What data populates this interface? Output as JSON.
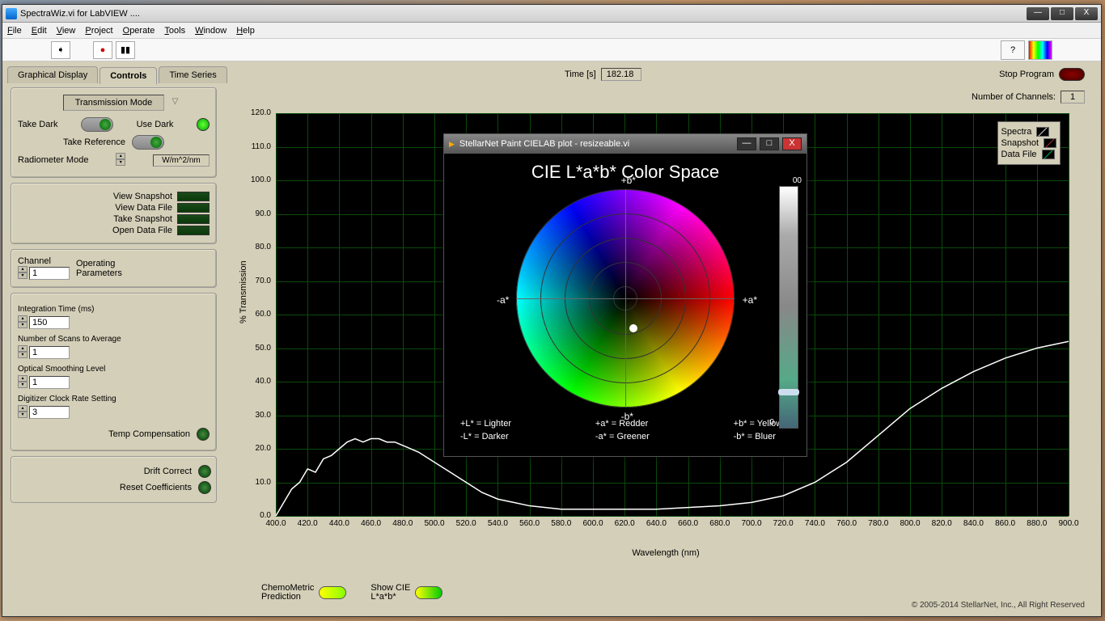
{
  "window": {
    "title": "SpectraWiz.vi for LabVIEW ....",
    "min": "—",
    "max": "□",
    "close": "X"
  },
  "menu": {
    "file": "File",
    "edit": "Edit",
    "view": "View",
    "project": "Project",
    "operate": "Operate",
    "tools": "Tools",
    "window": "Window",
    "help": "Help"
  },
  "tabs": {
    "graphical": "Graphical Display",
    "controls": "Controls",
    "timeseries": "Time Series"
  },
  "time": {
    "label": "Time [s]",
    "value": "182.18"
  },
  "stop": "Stop Program",
  "channels": {
    "label": "Number of Channels:",
    "value": "1"
  },
  "sidebar": {
    "mode": "Transmission Mode",
    "takeDark": "Take Dark",
    "useDark": "Use Dark",
    "takeRef": "Take Reference",
    "radiometer": "Radiometer Mode",
    "unit": "W/m^2/nm",
    "viewSnap": "View Snapshot",
    "viewData": "View Data File",
    "takeSnap": "Take Snapshot",
    "openData": "Open Data File",
    "channel": "Channel",
    "chanVal": "1",
    "opParams": "Operating Parameters",
    "intTime": "Integration Time (ms)",
    "intTimeVal": "150",
    "scans": "Number of Scans to Average",
    "scansVal": "1",
    "smooth": "Optical Smoothing Level",
    "smoothVal": "1",
    "clock": "Digitizer Clock Rate Setting",
    "clockVal": "3",
    "tempComp": "Temp Compensation",
    "drift": "Drift Correct",
    "reset": "Reset Coefficients"
  },
  "chart": {
    "ylabel": "% Transmission",
    "xlabel": "Wavelength (nm)",
    "yticks": [
      "0.0",
      "10.0",
      "20.0",
      "30.0",
      "40.0",
      "50.0",
      "60.0",
      "70.0",
      "80.0",
      "90.0",
      "100.0",
      "110.0",
      "120.0"
    ],
    "xticks": [
      "400.0",
      "420.0",
      "440.0",
      "460.0",
      "480.0",
      "500.0",
      "520.0",
      "540.0",
      "560.0",
      "580.0",
      "600.0",
      "620.0",
      "640.0",
      "660.0",
      "680.0",
      "700.0",
      "720.0",
      "740.0",
      "760.0",
      "780.0",
      "800.0",
      "820.0",
      "840.0",
      "860.0",
      "880.0",
      "900.0"
    ],
    "ylim": [
      0,
      120
    ],
    "xlim": [
      400,
      900
    ],
    "legend": [
      "Spectra",
      "Snapshot",
      "Data File"
    ],
    "series_color": "#ffffff",
    "bg": "#000000",
    "grid": "#0a4a0a",
    "data": [
      [
        400,
        0
      ],
      [
        405,
        4
      ],
      [
        410,
        8
      ],
      [
        415,
        10
      ],
      [
        420,
        14
      ],
      [
        425,
        13
      ],
      [
        430,
        17
      ],
      [
        435,
        18
      ],
      [
        440,
        20
      ],
      [
        445,
        22
      ],
      [
        450,
        23
      ],
      [
        455,
        22
      ],
      [
        460,
        23
      ],
      [
        465,
        23
      ],
      [
        470,
        22
      ],
      [
        475,
        22
      ],
      [
        480,
        21
      ],
      [
        490,
        19
      ],
      [
        500,
        16
      ],
      [
        510,
        13
      ],
      [
        520,
        10
      ],
      [
        530,
        7
      ],
      [
        540,
        5
      ],
      [
        550,
        4
      ],
      [
        560,
        3
      ],
      [
        580,
        2
      ],
      [
        600,
        2
      ],
      [
        620,
        2
      ],
      [
        640,
        2
      ],
      [
        660,
        2.5
      ],
      [
        680,
        3
      ],
      [
        700,
        4
      ],
      [
        720,
        6
      ],
      [
        740,
        10
      ],
      [
        760,
        16
      ],
      [
        780,
        24
      ],
      [
        800,
        32
      ],
      [
        820,
        38
      ],
      [
        840,
        43
      ],
      [
        860,
        47
      ],
      [
        880,
        50
      ],
      [
        900,
        52
      ]
    ]
  },
  "bottom": {
    "chemo": "ChemoMetric Prediction",
    "cie": "Show CIE L*a*b*"
  },
  "copyright": "© 2005-2014 StellarNet, Inc., All Right Reserved",
  "popup": {
    "title": "StellarNet Paint CIELAB plot - resizeable.vi",
    "heading": "CIE L*a*b* Color Space",
    "axes": {
      "pa": "+a*",
      "na": "-a*",
      "pb": "+b*",
      "nb": "-b*"
    },
    "L1": "+L* = Lighter",
    "L2": "-L*  = Darker",
    "a1": "+a* = Redder",
    "a2": "-a*  = Greener",
    "b1": "+b* = Yellower",
    "b2": "-b*  = Bluer",
    "scale_top": "00",
    "scale_bot": "0"
  }
}
